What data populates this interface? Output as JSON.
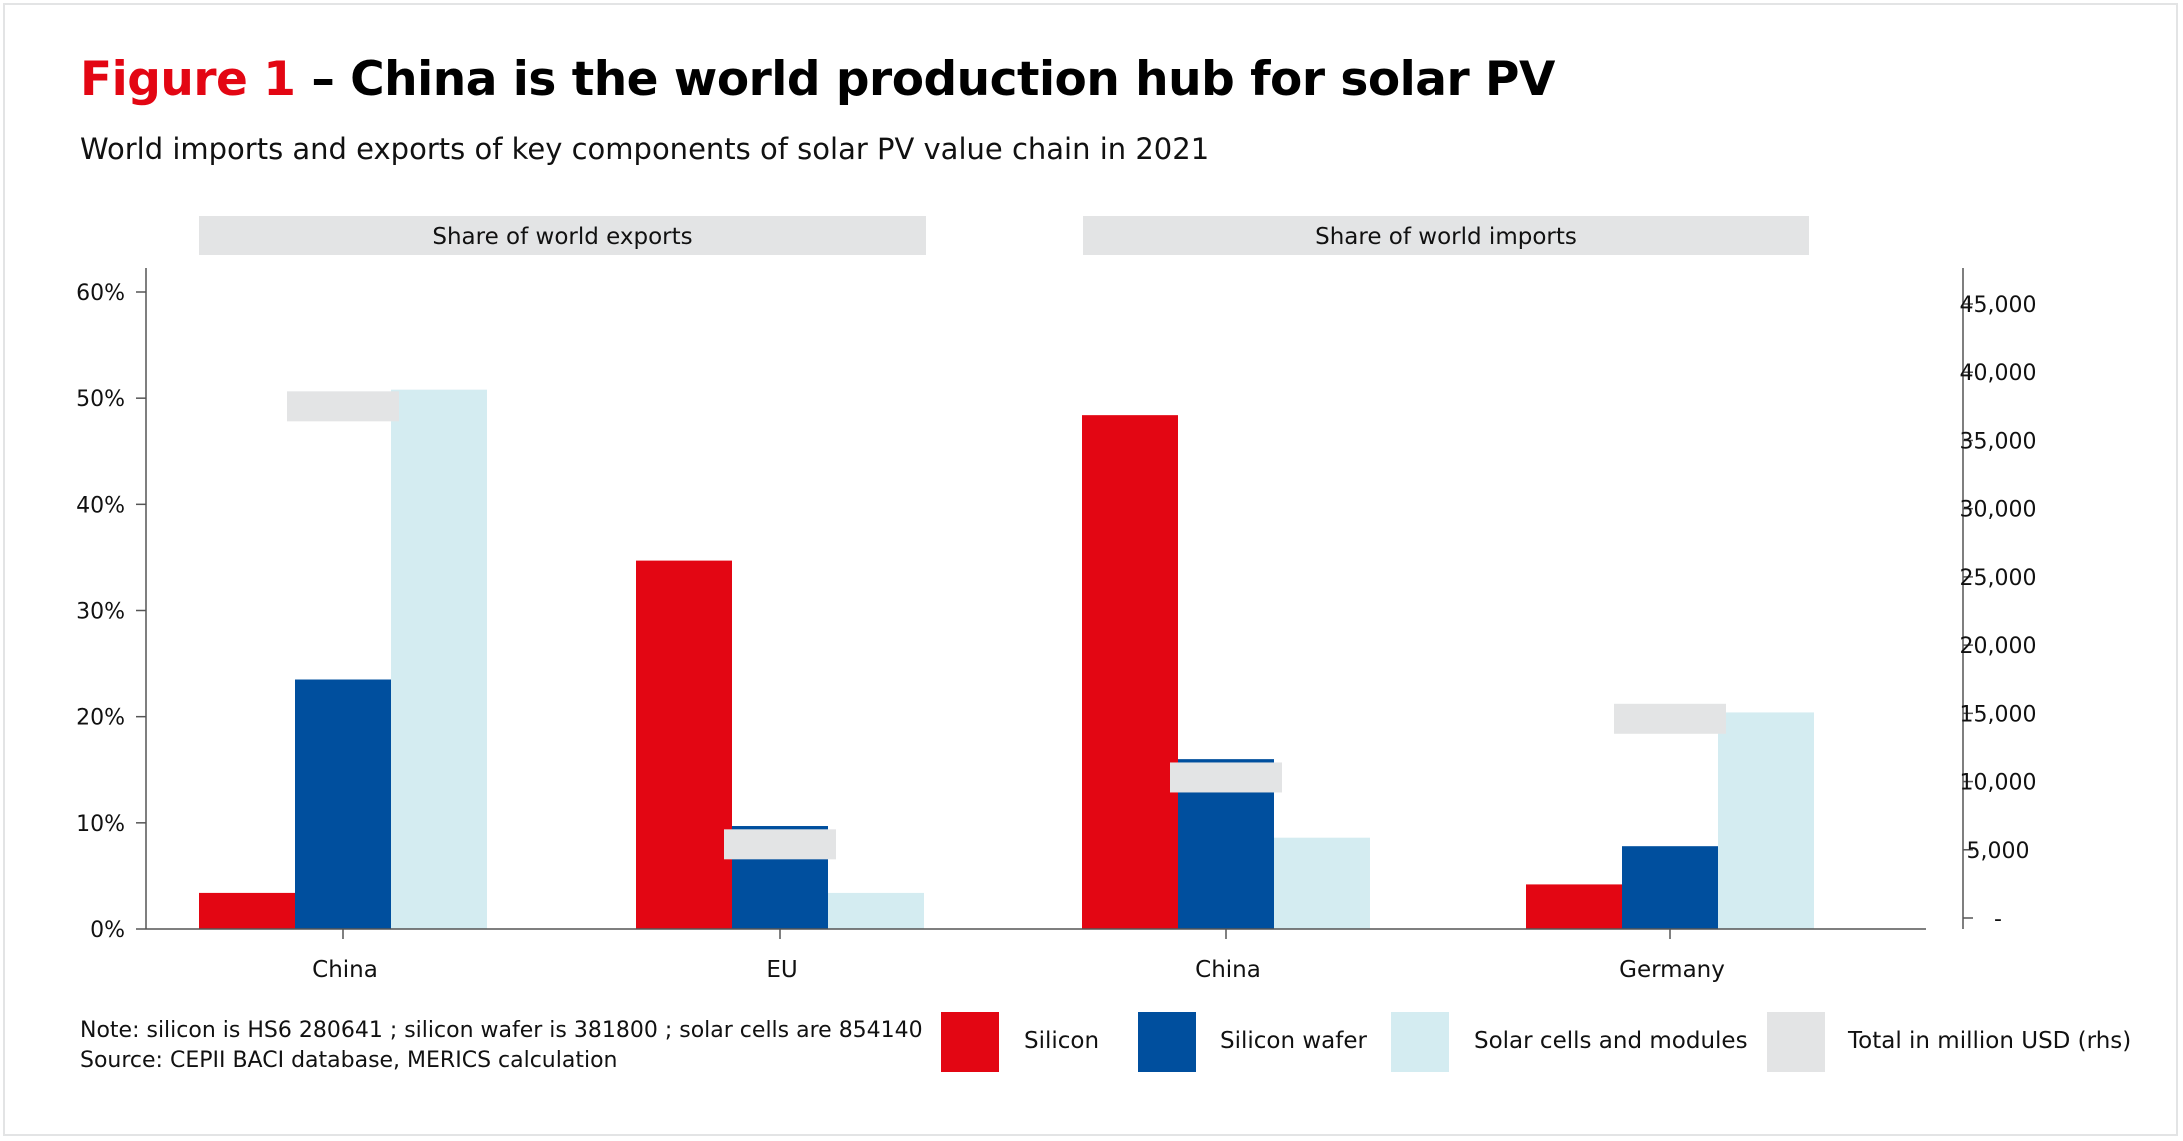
{
  "title_prefix": "Figure 1",
  "title_rest": " – China is the world production hub for solar PV",
  "subtitle": "World imports and exports of key components of solar PV value chain in 2021",
  "note_line1": "Note: silicon is HS6 280641 ; silicon wafer is 381800 ; solar cells are 854140",
  "note_line2": "Source: CEPII BACI database, MERICS calculation",
  "colors": {
    "silicon": "#e30613",
    "wafer": "#004f9e",
    "cells": "#d4ecf1",
    "total": "#e3e4e5",
    "axis": "#555555",
    "panel": "#e3e4e5"
  },
  "chart_data": {
    "type": "bar",
    "panels": [
      {
        "label": "Share of world exports",
        "categories": [
          "China",
          "EU"
        ]
      },
      {
        "label": "Share of world imports",
        "categories": [
          "China",
          "Germany"
        ]
      }
    ],
    "categories": [
      "China",
      "EU",
      "China",
      "Germany"
    ],
    "series": [
      {
        "name": "Silicon",
        "values": [
          0.034,
          0.347,
          0.484,
          0.042
        ]
      },
      {
        "name": "Silicon wafer",
        "values": [
          0.235,
          0.097,
          0.16,
          0.078
        ]
      },
      {
        "name": "Solar cells and modules",
        "values": [
          0.508,
          0.034,
          0.086,
          0.204
        ]
      }
    ],
    "total_series": {
      "name": "Total in million USD (rhs)",
      "values": [
        37500,
        5400,
        10300,
        14600
      ]
    },
    "y_left": {
      "min": 0,
      "max": 0.6,
      "ticks": [
        0,
        0.1,
        0.2,
        0.3,
        0.4,
        0.5,
        0.6
      ],
      "tick_labels": [
        "0%",
        "10%",
        "20%",
        "30%",
        "40%",
        "50%",
        "60%"
      ]
    },
    "y_right": {
      "min": 0,
      "max": 45000,
      "ticks": [
        0,
        5000,
        10000,
        15000,
        20000,
        25000,
        30000,
        35000,
        40000,
        45000
      ],
      "tick_labels": [
        "-",
        "5,000",
        "10,000",
        "15,000",
        "20,000",
        "25,000",
        "30,000",
        "35,000",
        "40,000",
        "45,000"
      ]
    },
    "legend": [
      "Silicon",
      "Silicon wafer",
      "Solar cells and modules",
      "Total in million USD (rhs)"
    ],
    "legend_position": "bottom-right",
    "grid": false
  }
}
